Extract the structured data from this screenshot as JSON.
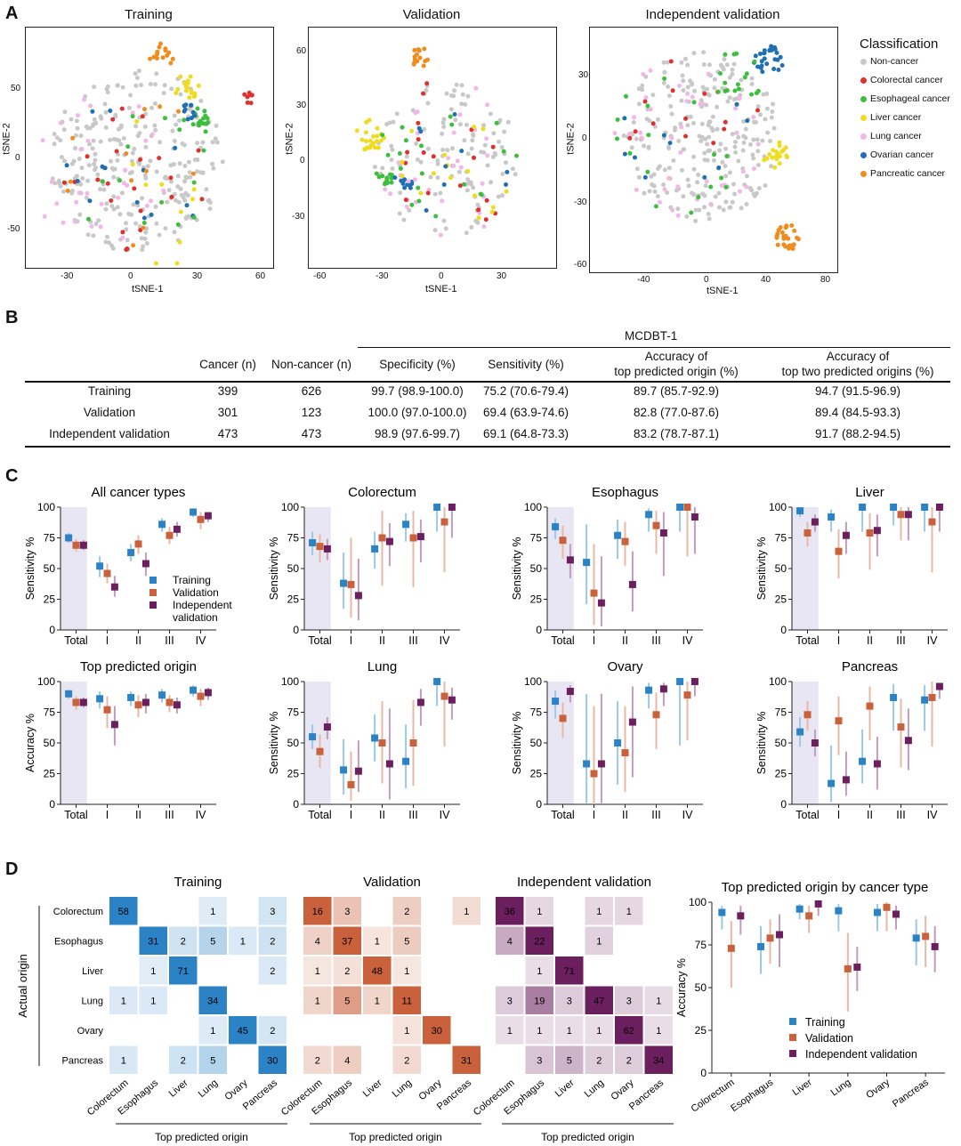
{
  "panels": {
    "A": "A",
    "B": "B",
    "C": "C",
    "D": "D"
  },
  "colors": {
    "non_cancer": "#c8c8c8",
    "colorectal": "#e0302e",
    "esophageal": "#3cbf3c",
    "liver": "#f0dc1e",
    "lung": "#f2b6e8",
    "ovarian": "#1e6fb4",
    "pancreatic": "#f08c1e",
    "training": "#2b83c6",
    "validation": "#c8613c",
    "independent": "#6b1f5e",
    "shade": "#e8e6f2"
  },
  "tsne": {
    "ylabel": "tSNE-2",
    "xlabel": "tSNE-1",
    "plots": [
      {
        "title": "Training",
        "xticks": [
          "-30",
          "0",
          "30",
          "60"
        ],
        "yticks": [
          "50",
          "0",
          "-50"
        ]
      },
      {
        "title": "Validation",
        "xticks": [
          "-60",
          "-30",
          "0",
          "30"
        ],
        "yticks": [
          "60",
          "30",
          "0",
          "-30"
        ]
      },
      {
        "title": "Independent validation",
        "xticks": [
          "-40",
          "0",
          "40",
          "80"
        ],
        "yticks": [
          "30",
          "0",
          "-30",
          "-60"
        ]
      }
    ],
    "legend": {
      "title": "Classification",
      "items": [
        "Non-cancer",
        "Colorectal cancer",
        "Esophageal cancer",
        "Liver cancer",
        "Lung cancer",
        "Ovarian cancer",
        "Pancreatic cancer"
      ]
    }
  },
  "table": {
    "group_header": "MCDBT-1",
    "headers": [
      "Cancer (n)",
      "Non-cancer (n)",
      "Specificity (%)",
      "Sensitivity (%)",
      "Accuracy of",
      "top predicted origin (%)",
      "Accuracy of",
      "top two predicted origins (%)"
    ],
    "rows": [
      {
        "label": "Training",
        "cancer": "399",
        "noncancer": "626",
        "spec": "99.7 (98.9-100.0)",
        "sens": "75.2 (70.6-79.4)",
        "acc1": "89.7 (85.7-92.9)",
        "acc2": "94.7 (91.5-96.9)"
      },
      {
        "label": "Validation",
        "cancer": "301",
        "noncancer": "123",
        "spec": "100.0 (97.0-100.0)",
        "sens": "69.4 (63.9-74.6)",
        "acc1": "82.8 (77.0-87.6)",
        "acc2": "89.4 (84.5-93.3)"
      },
      {
        "label": "Independent validation",
        "cancer": "473",
        "noncancer": "473",
        "spec": "98.9 (97.6-99.7)",
        "sens": "69.1 (64.8-73.3)",
        "acc1": "83.2 (78.7-87.1)",
        "acc2": "91.7 (88.2-94.5)"
      }
    ]
  },
  "chart_data": [
    {
      "type": "scatter",
      "kind": "dot_errorbar",
      "title": "All cancer types",
      "ylabel": "Sensitivity %",
      "ylim": [
        0,
        100
      ],
      "categories": [
        "Total",
        "I",
        "II",
        "III",
        "IV"
      ],
      "legend": [
        "Training",
        "Validation",
        "Independent",
        "validation"
      ],
      "series": [
        {
          "name": "Training",
          "values": [
            75,
            52,
            63,
            86,
            96
          ],
          "lo": [
            71,
            43,
            56,
            80,
            92
          ],
          "hi": [
            79,
            60,
            70,
            91,
            98
          ]
        },
        {
          "name": "Validation",
          "values": [
            69,
            46,
            70,
            77,
            90
          ],
          "lo": [
            64,
            38,
            62,
            70,
            82
          ],
          "hi": [
            74,
            54,
            77,
            84,
            96
          ]
        },
        {
          "name": "Independent validation",
          "values": [
            69,
            35,
            54,
            82,
            93
          ],
          "lo": [
            65,
            27,
            44,
            76,
            88
          ],
          "hi": [
            73,
            44,
            63,
            88,
            96
          ]
        }
      ]
    },
    {
      "type": "scatter",
      "kind": "dot_errorbar",
      "title": "Colorectum",
      "ylabel": "Sensitivity %",
      "ylim": [
        0,
        100
      ],
      "categories": [
        "Total",
        "I",
        "II",
        "III",
        "IV"
      ],
      "series": [
        {
          "name": "Training",
          "values": [
            71,
            38,
            66,
            86,
            100
          ],
          "lo": [
            61,
            17,
            50,
            72,
            80
          ],
          "hi": [
            80,
            63,
            80,
            95,
            100
          ]
        },
        {
          "name": "Validation",
          "values": [
            68,
            37,
            75,
            75,
            88
          ],
          "lo": [
            55,
            10,
            36,
            35,
            47
          ],
          "hi": [
            78,
            75,
            97,
            97,
            100
          ]
        },
        {
          "name": "Independent validation",
          "values": [
            66,
            28,
            72,
            76,
            100
          ],
          "lo": [
            57,
            8,
            52,
            55,
            75
          ],
          "hi": [
            74,
            58,
            87,
            90,
            100
          ]
        }
      ]
    },
    {
      "type": "scatter",
      "kind": "dot_errorbar",
      "title": "Esophagus",
      "ylabel": "Sensitivity %",
      "ylim": [
        0,
        100
      ],
      "categories": [
        "Total",
        "I",
        "II",
        "III",
        "IV"
      ],
      "series": [
        {
          "name": "Training",
          "values": [
            84,
            55,
            77,
            94,
            100
          ],
          "lo": [
            74,
            21,
            58,
            80,
            80
          ],
          "hi": [
            91,
            86,
            90,
            99,
            100
          ]
        },
        {
          "name": "Validation",
          "values": [
            73,
            30,
            72,
            85,
            100
          ],
          "lo": [
            58,
            4,
            52,
            62,
            60
          ],
          "hi": [
            85,
            70,
            88,
            97,
            100
          ]
        },
        {
          "name": "Independent validation",
          "values": [
            57,
            22,
            37,
            79,
            92
          ],
          "lo": [
            42,
            3,
            15,
            44,
            62
          ],
          "hi": [
            70,
            60,
            64,
            96,
            100
          ]
        }
      ]
    },
    {
      "type": "scatter",
      "kind": "dot_errorbar",
      "title": "Liver",
      "ylabel": "Sensitivity %",
      "ylim": [
        0,
        100
      ],
      "categories": [
        "Total",
        "I",
        "II",
        "III",
        "IV"
      ],
      "series": [
        {
          "name": "Training",
          "values": [
            97,
            92,
            100,
            100,
            100
          ],
          "lo": [
            92,
            80,
            80,
            85,
            80
          ],
          "hi": [
            99,
            98,
            100,
            100,
            100
          ]
        },
        {
          "name": "Validation",
          "values": [
            79,
            64,
            79,
            94,
            88
          ],
          "lo": [
            68,
            42,
            49,
            73,
            47
          ],
          "hi": [
            88,
            82,
            95,
            100,
            100
          ]
        },
        {
          "name": "Independent validation",
          "values": [
            88,
            77,
            81,
            94,
            100
          ],
          "lo": [
            80,
            62,
            60,
            73,
            80
          ],
          "hi": [
            94,
            88,
            94,
            100,
            100
          ]
        }
      ]
    },
    {
      "type": "scatter",
      "kind": "dot_errorbar",
      "title": "Top predicted origin",
      "ylabel": "Accuracy %",
      "ylim": [
        0,
        100
      ],
      "categories": [
        "Total",
        "I",
        "II",
        "III",
        "IV"
      ],
      "series": [
        {
          "name": "Training",
          "values": [
            90,
            86,
            87,
            89,
            93
          ],
          "lo": [
            86,
            78,
            80,
            83,
            88
          ],
          "hi": [
            93,
            92,
            92,
            94,
            97
          ]
        },
        {
          "name": "Validation",
          "values": [
            83,
            77,
            81,
            83,
            88
          ],
          "lo": [
            77,
            62,
            71,
            75,
            80
          ],
          "hi": [
            88,
            88,
            89,
            89,
            94
          ]
        },
        {
          "name": "Independent validation",
          "values": [
            83,
            65,
            83,
            81,
            91
          ],
          "lo": [
            79,
            48,
            74,
            74,
            85
          ],
          "hi": [
            87,
            80,
            90,
            87,
            95
          ]
        }
      ]
    },
    {
      "type": "scatter",
      "kind": "dot_errorbar",
      "title": "Lung",
      "ylabel": "Sensitivity %",
      "ylim": [
        0,
        100
      ],
      "categories": [
        "Total",
        "I",
        "II",
        "III",
        "IV"
      ],
      "series": [
        {
          "name": "Training",
          "values": [
            55,
            28,
            54,
            35,
            100
          ],
          "lo": [
            45,
            8,
            35,
            13,
            80
          ],
          "hi": [
            65,
            53,
            73,
            65,
            100
          ]
        },
        {
          "name": "Validation",
          "values": [
            43,
            16,
            50,
            50,
            88
          ],
          "lo": [
            30,
            3,
            17,
            15,
            47
          ],
          "hi": [
            57,
            43,
            84,
            85,
            100
          ]
        },
        {
          "name": "Independent validation",
          "values": [
            63,
            27,
            33,
            83,
            85
          ],
          "lo": [
            53,
            10,
            4,
            64,
            69
          ],
          "hi": [
            71,
            52,
            78,
            94,
            95
          ]
        }
      ]
    },
    {
      "type": "scatter",
      "kind": "dot_errorbar",
      "title": "Ovary",
      "ylabel": "Sensitivity %",
      "ylim": [
        0,
        100
      ],
      "categories": [
        "Total",
        "I",
        "II",
        "III",
        "IV"
      ],
      "series": [
        {
          "name": "Training",
          "values": [
            84,
            33,
            50,
            93,
            100
          ],
          "lo": [
            70,
            1,
            16,
            78,
            48
          ],
          "hi": [
            93,
            90,
            84,
            99,
            100
          ]
        },
        {
          "name": "Validation",
          "values": [
            70,
            25,
            42,
            73,
            89
          ],
          "lo": [
            54,
            0,
            10,
            45,
            52
          ],
          "hi": [
            83,
            80,
            80,
            91,
            100
          ]
        },
        {
          "name": "Independent validation",
          "values": [
            92,
            33,
            67,
            94,
            100
          ],
          "lo": [
            83,
            1,
            22,
            80,
            88
          ],
          "hi": [
            97,
            90,
            96,
            99,
            100
          ]
        }
      ]
    },
    {
      "type": "scatter",
      "kind": "dot_errorbar",
      "title": "Pancreas",
      "ylabel": "Sensitivity %",
      "ylim": [
        0,
        100
      ],
      "categories": [
        "Total",
        "I",
        "II",
        "III",
        "IV"
      ],
      "series": [
        {
          "name": "Training",
          "values": [
            59,
            17,
            35,
            87,
            85
          ],
          "lo": [
            47,
            2,
            17,
            60,
            60
          ],
          "hi": [
            71,
            48,
            61,
            98,
            97
          ]
        },
        {
          "name": "Validation",
          "values": [
            73,
            68,
            80,
            63,
            87
          ],
          "lo": [
            60,
            40,
            52,
            30,
            47
          ],
          "hi": [
            84,
            88,
            96,
            86,
            100
          ]
        },
        {
          "name": "Independent validation",
          "values": [
            50,
            20,
            33,
            52,
            96
          ],
          "lo": [
            39,
            7,
            12,
            28,
            86
          ],
          "hi": [
            61,
            43,
            55,
            78,
            99
          ]
        }
      ]
    },
    {
      "type": "heatmap",
      "title": "Training",
      "xlabel": "Top predicted origin",
      "ylabel": "Actual origin",
      "rows": [
        "Colorectum",
        "Esophagus",
        "Liver",
        "Lung",
        "Ovary",
        "Pancreas"
      ],
      "cols": [
        "Colorectum",
        "Esophagus",
        "Liver",
        "Lung",
        "Ovary",
        "Pancreas"
      ],
      "values": [
        [
          58,
          null,
          null,
          1,
          null,
          3
        ],
        [
          null,
          31,
          2,
          5,
          1,
          2
        ],
        [
          null,
          1,
          71,
          null,
          null,
          2
        ],
        [
          1,
          1,
          null,
          34,
          null,
          null
        ],
        [
          null,
          null,
          null,
          1,
          45,
          2
        ],
        [
          1,
          null,
          2,
          5,
          null,
          30
        ]
      ]
    },
    {
      "type": "heatmap",
      "title": "Validation",
      "xlabel": "Top predicted origin",
      "rows": [
        "Colorectum",
        "Esophagus",
        "Liver",
        "Lung",
        "Ovary",
        "Pancreas"
      ],
      "cols": [
        "Colorectum",
        "Esophagus",
        "Liver",
        "Lung",
        "Ovary",
        "Pancreas"
      ],
      "values": [
        [
          16,
          3,
          null,
          2,
          null,
          1
        ],
        [
          4,
          37,
          1,
          5,
          null,
          null
        ],
        [
          1,
          2,
          48,
          1,
          null,
          null
        ],
        [
          1,
          5,
          1,
          11,
          null,
          null
        ],
        [
          null,
          null,
          null,
          1,
          30,
          null
        ],
        [
          2,
          4,
          null,
          2,
          null,
          31
        ]
      ]
    },
    {
      "type": "heatmap",
      "title": "Independent validation",
      "xlabel": "Top predicted origin",
      "rows": [
        "Colorectum",
        "Esophagus",
        "Liver",
        "Lung",
        "Ovary",
        "Pancreas"
      ],
      "cols": [
        "Colorectum",
        "Esophagus",
        "Liver",
        "Lung",
        "Ovary",
        "Pancreas"
      ],
      "values": [
        [
          36,
          1,
          null,
          1,
          1,
          null
        ],
        [
          4,
          22,
          null,
          1,
          null,
          null
        ],
        [
          null,
          1,
          71,
          null,
          null,
          null
        ],
        [
          3,
          19,
          3,
          47,
          3,
          1
        ],
        [
          1,
          1,
          1,
          1,
          62,
          1
        ],
        [
          null,
          3,
          5,
          2,
          2,
          34
        ]
      ]
    },
    {
      "type": "scatter",
      "kind": "dot_errorbar",
      "title": "Top predicted origin by cancer type",
      "ylabel": "Accuracy %",
      "ylim": [
        0,
        100
      ],
      "categories": [
        "Colorectum",
        "Esophagus",
        "Liver",
        "Lung",
        "Ovary",
        "Pancreas"
      ],
      "legend": [
        "Training",
        "Validation",
        "Independent validation"
      ],
      "series": [
        {
          "name": "Training",
          "values": [
            94,
            74,
            96,
            95,
            94,
            79
          ],
          "lo": [
            84,
            58,
            90,
            83,
            83,
            63
          ],
          "hi": [
            98,
            86,
            99,
            99,
            99,
            90
          ]
        },
        {
          "name": "Validation",
          "values": [
            73,
            79,
            92,
            61,
            97,
            80
          ],
          "lo": [
            50,
            64,
            82,
            36,
            83,
            62
          ],
          "hi": [
            89,
            90,
            98,
            82,
            100,
            92
          ]
        },
        {
          "name": "Independent validation",
          "values": [
            92,
            81,
            99,
            62,
            93,
            74
          ],
          "lo": [
            81,
            62,
            92,
            48,
            84,
            59
          ],
          "hi": [
            98,
            93,
            100,
            74,
            98,
            86
          ]
        }
      ]
    }
  ]
}
